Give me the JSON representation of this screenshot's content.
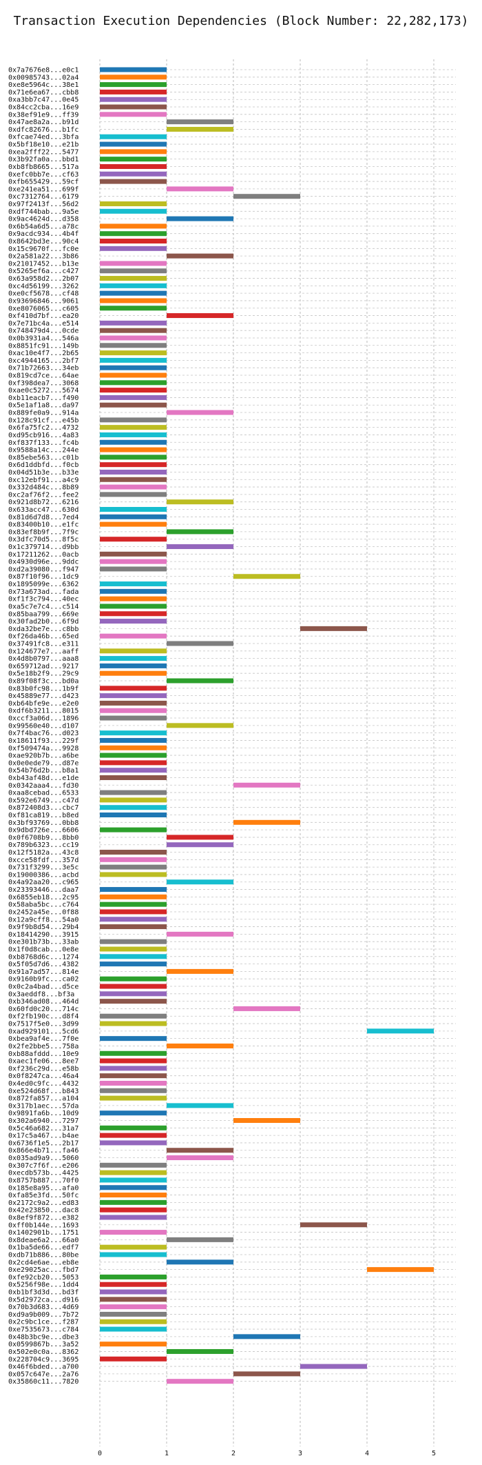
{
  "chart_data": {
    "type": "bar",
    "orientation": "horizontal-gantt",
    "title": "Transaction Execution Dependencies (Block Number: 22,282,173)",
    "xlabel": "",
    "ylabel": "",
    "xlim": [
      0,
      5
    ],
    "xticks": [
      0,
      1,
      2,
      3,
      4,
      5
    ],
    "grid": true,
    "colors": [
      "#1f77b4",
      "#ff7f0e",
      "#2ca02c",
      "#d62728",
      "#9467bd",
      "#8c564b",
      "#e377c2",
      "#7f7f7f",
      "#bcbd22",
      "#17becf"
    ],
    "transactions": [
      {
        "label": "0x7a7676e8...e0c1",
        "start": 0,
        "end": 1
      },
      {
        "label": "0x00985743...02a4",
        "start": 0,
        "end": 1
      },
      {
        "label": "0xe8e5964c...38e1",
        "start": 0,
        "end": 1
      },
      {
        "label": "0x71e6ea67...cbb8",
        "start": 0,
        "end": 1
      },
      {
        "label": "0xa3bb7c47...0e45",
        "start": 0,
        "end": 1
      },
      {
        "label": "0x84cc2cba...16e9",
        "start": 0,
        "end": 1
      },
      {
        "label": "0x38ef91e9...ff39",
        "start": 0,
        "end": 1
      },
      {
        "label": "0x47ae8a2a...b91d",
        "start": 1,
        "end": 2
      },
      {
        "label": "0xdfc82676...b1fc",
        "start": 1,
        "end": 2
      },
      {
        "label": "0xfcae74ed...3bfa",
        "start": 0,
        "end": 1
      },
      {
        "label": "0x5bf18e10...e21b",
        "start": 0,
        "end": 1
      },
      {
        "label": "0xea2fff22...5477",
        "start": 0,
        "end": 1
      },
      {
        "label": "0x3b92fa0a...bbd1",
        "start": 0,
        "end": 1
      },
      {
        "label": "0xb8fb8665...517a",
        "start": 0,
        "end": 1
      },
      {
        "label": "0xefc0bb7e...cf63",
        "start": 0,
        "end": 1
      },
      {
        "label": "0xfb655429...59cf",
        "start": 0,
        "end": 1
      },
      {
        "label": "0xe241ea51...699f",
        "start": 1,
        "end": 2
      },
      {
        "label": "0xc7312764...6179",
        "start": 2,
        "end": 3
      },
      {
        "label": "0x97f2413f...56d2",
        "start": 0,
        "end": 1
      },
      {
        "label": "0xdf744bab...9a5e",
        "start": 0,
        "end": 1
      },
      {
        "label": "0x9ac4624d...d358",
        "start": 1,
        "end": 2
      },
      {
        "label": "0x6b54a6d5...a78c",
        "start": 0,
        "end": 1
      },
      {
        "label": "0x9acdc934...4b4f",
        "start": 0,
        "end": 1
      },
      {
        "label": "0x8642bd3e...90c4",
        "start": 0,
        "end": 1
      },
      {
        "label": "0x15c9670f...fc0e",
        "start": 0,
        "end": 1
      },
      {
        "label": "0x2a581a22...3b86",
        "start": 1,
        "end": 2
      },
      {
        "label": "0x21017452...b13e",
        "start": 0,
        "end": 1
      },
      {
        "label": "0x5265ef6a...c427",
        "start": 0,
        "end": 1
      },
      {
        "label": "0x63a958d2...2b07",
        "start": 0,
        "end": 1
      },
      {
        "label": "0xc4d56199...3262",
        "start": 0,
        "end": 1
      },
      {
        "label": "0xe0cf5678...cf48",
        "start": 0,
        "end": 1
      },
      {
        "label": "0x93696846...9061",
        "start": 0,
        "end": 1
      },
      {
        "label": "0xe8076065...c605",
        "start": 0,
        "end": 1
      },
      {
        "label": "0xf410d7bf...ea20",
        "start": 1,
        "end": 2
      },
      {
        "label": "0x7e71bc4a...e514",
        "start": 0,
        "end": 1
      },
      {
        "label": "0x748479d4...0cde",
        "start": 0,
        "end": 1
      },
      {
        "label": "0x0b3931a4...546a",
        "start": 0,
        "end": 1
      },
      {
        "label": "0x8851fc91...149b",
        "start": 0,
        "end": 1
      },
      {
        "label": "0xac10e4f7...2b65",
        "start": 0,
        "end": 1
      },
      {
        "label": "0xc4944165...2bf7",
        "start": 0,
        "end": 1
      },
      {
        "label": "0x71b72663...34eb",
        "start": 0,
        "end": 1
      },
      {
        "label": "0x819cd7ce...64ae",
        "start": 0,
        "end": 1
      },
      {
        "label": "0xf398dea7...3068",
        "start": 0,
        "end": 1
      },
      {
        "label": "0xae0c5272...5674",
        "start": 0,
        "end": 1
      },
      {
        "label": "0xb11eacb7...f490",
        "start": 0,
        "end": 1
      },
      {
        "label": "0x5e1af1a8...da97",
        "start": 0,
        "end": 1
      },
      {
        "label": "0x889fe0a9...914a",
        "start": 1,
        "end": 2
      },
      {
        "label": "0x128c91cf...e45b",
        "start": 0,
        "end": 1
      },
      {
        "label": "0x6fa75fc2...4732",
        "start": 0,
        "end": 1
      },
      {
        "label": "0xd95cb916...4a83",
        "start": 0,
        "end": 1
      },
      {
        "label": "0xf837f133...fc4b",
        "start": 0,
        "end": 1
      },
      {
        "label": "0x9588a14c...244e",
        "start": 0,
        "end": 1
      },
      {
        "label": "0x85ebe563...c01b",
        "start": 0,
        "end": 1
      },
      {
        "label": "0x6d1ddbfd...f0cb",
        "start": 0,
        "end": 1
      },
      {
        "label": "0x04d51b3e...b33e",
        "start": 0,
        "end": 1
      },
      {
        "label": "0xc12ebf91...a4c9",
        "start": 0,
        "end": 1
      },
      {
        "label": "0x332d484c...8b89",
        "start": 0,
        "end": 1
      },
      {
        "label": "0xc2af76f2...fee2",
        "start": 0,
        "end": 1
      },
      {
        "label": "0x921d8b72...6216",
        "start": 1,
        "end": 2
      },
      {
        "label": "0x633acc47...630d",
        "start": 0,
        "end": 1
      },
      {
        "label": "0x81d6d7d8...7ed4",
        "start": 0,
        "end": 1
      },
      {
        "label": "0x83400b10...e1fc",
        "start": 0,
        "end": 1
      },
      {
        "label": "0x83ef8b9f...7f9c",
        "start": 1,
        "end": 2
      },
      {
        "label": "0x3dfc70d5...8f5c",
        "start": 0,
        "end": 1
      },
      {
        "label": "0x1c379714...d9bb",
        "start": 1,
        "end": 2
      },
      {
        "label": "0x17211262...0acb",
        "start": 0,
        "end": 1
      },
      {
        "label": "0x4930d96e...9ddc",
        "start": 0,
        "end": 1
      },
      {
        "label": "0xd2a39080...f947",
        "start": 0,
        "end": 1
      },
      {
        "label": "0x87f10f96...1dc9",
        "start": 2,
        "end": 3
      },
      {
        "label": "0x1895099e...6362",
        "start": 0,
        "end": 1
      },
      {
        "label": "0x73a673ad...fada",
        "start": 0,
        "end": 1
      },
      {
        "label": "0xf1f3c794...40ec",
        "start": 0,
        "end": 1
      },
      {
        "label": "0xa5c7e7c4...c514",
        "start": 0,
        "end": 1
      },
      {
        "label": "0x85baa799...669e",
        "start": 0,
        "end": 1
      },
      {
        "label": "0x30fad2b0...6f9d",
        "start": 0,
        "end": 1
      },
      {
        "label": "0xda32be7e...c8bb",
        "start": 3,
        "end": 4
      },
      {
        "label": "0xf26da46b...65ed",
        "start": 0,
        "end": 1
      },
      {
        "label": "0x37491fc8...e311",
        "start": 1,
        "end": 2
      },
      {
        "label": "0x124677e7...aaff",
        "start": 0,
        "end": 1
      },
      {
        "label": "0x4d8b0797...aaa8",
        "start": 0,
        "end": 1
      },
      {
        "label": "0x659712ad...9217",
        "start": 0,
        "end": 1
      },
      {
        "label": "0x5e18b2f9...29c9",
        "start": 0,
        "end": 1
      },
      {
        "label": "0x89f08f3c...bd0a",
        "start": 1,
        "end": 2
      },
      {
        "label": "0x83b0fc98...1b9f",
        "start": 0,
        "end": 1
      },
      {
        "label": "0x45889e77...d423",
        "start": 0,
        "end": 1
      },
      {
        "label": "0xb64bfe9e...e2e0",
        "start": 0,
        "end": 1
      },
      {
        "label": "0xdf6b3211...8015",
        "start": 0,
        "end": 1
      },
      {
        "label": "0xccf3a06d...1896",
        "start": 0,
        "end": 1
      },
      {
        "label": "0x99560e40...d107",
        "start": 1,
        "end": 2
      },
      {
        "label": "0x7f4bac76...d023",
        "start": 0,
        "end": 1
      },
      {
        "label": "0x18611f93...229f",
        "start": 0,
        "end": 1
      },
      {
        "label": "0xf509474a...9928",
        "start": 0,
        "end": 1
      },
      {
        "label": "0xae920b7b...a6be",
        "start": 0,
        "end": 1
      },
      {
        "label": "0x0e0ede79...d87e",
        "start": 0,
        "end": 1
      },
      {
        "label": "0x54b76d2b...b8a1",
        "start": 0,
        "end": 1
      },
      {
        "label": "0xb43af48d...e1de",
        "start": 0,
        "end": 1
      },
      {
        "label": "0x0342aaa4...fd30",
        "start": 2,
        "end": 3
      },
      {
        "label": "0xaa8cebad...6533",
        "start": 0,
        "end": 1
      },
      {
        "label": "0x592e6749...c47d",
        "start": 0,
        "end": 1
      },
      {
        "label": "0x872408d3...cbc7",
        "start": 0,
        "end": 1
      },
      {
        "label": "0xf81ca819...b8ed",
        "start": 0,
        "end": 1
      },
      {
        "label": "0x3bf93769...0bb8",
        "start": 2,
        "end": 3
      },
      {
        "label": "0x9dbd726e...6606",
        "start": 0,
        "end": 1
      },
      {
        "label": "0x0f6708b9...8bb0",
        "start": 1,
        "end": 2
      },
      {
        "label": "0x789b6323...cc19",
        "start": 1,
        "end": 2
      },
      {
        "label": "0x12f5182a...43c8",
        "start": 0,
        "end": 1
      },
      {
        "label": "0xcce58fdf...357d",
        "start": 0,
        "end": 1
      },
      {
        "label": "0x731f3299...3e5c",
        "start": 0,
        "end": 1
      },
      {
        "label": "0x19000386...acbd",
        "start": 0,
        "end": 1
      },
      {
        "label": "0x4a92aa20...c965",
        "start": 1,
        "end": 2
      },
      {
        "label": "0x23393446...daa7",
        "start": 0,
        "end": 1
      },
      {
        "label": "0x6855eb18...2c95",
        "start": 0,
        "end": 1
      },
      {
        "label": "0x58aba5bc...c764",
        "start": 0,
        "end": 1
      },
      {
        "label": "0x2452a45e...0f88",
        "start": 0,
        "end": 1
      },
      {
        "label": "0x12a9cff8...54a0",
        "start": 0,
        "end": 1
      },
      {
        "label": "0x9f9b8d54...29b4",
        "start": 0,
        "end": 1
      },
      {
        "label": "0x18414290...3915",
        "start": 1,
        "end": 2
      },
      {
        "label": "0xe301b73b...33ab",
        "start": 0,
        "end": 1
      },
      {
        "label": "0x1f0d8cab...0e8e",
        "start": 0,
        "end": 1
      },
      {
        "label": "0xb8768d6c...1274",
        "start": 0,
        "end": 1
      },
      {
        "label": "0x5f05d7d6...4382",
        "start": 0,
        "end": 1
      },
      {
        "label": "0x91a7ad57...814e",
        "start": 1,
        "end": 2
      },
      {
        "label": "0x9160b9fc...ca02",
        "start": 0,
        "end": 1
      },
      {
        "label": "0x0c2a4bad...d5ce",
        "start": 0,
        "end": 1
      },
      {
        "label": "0x3aeddf8...bf3a",
        "start": 0,
        "end": 1
      },
      {
        "label": "0xb346ad08...464d",
        "start": 0,
        "end": 1
      },
      {
        "label": "0x60fd0c20...714c",
        "start": 2,
        "end": 3
      },
      {
        "label": "0xf2fb190c...d8f4",
        "start": 0,
        "end": 1
      },
      {
        "label": "0x7517f5e0...3d99",
        "start": 0,
        "end": 1
      },
      {
        "label": "0xad929101...5cd6",
        "start": 4,
        "end": 5
      },
      {
        "label": "0xbea9af4e...7f0e",
        "start": 0,
        "end": 1
      },
      {
        "label": "0x2fe2bbe5...758a",
        "start": 1,
        "end": 2
      },
      {
        "label": "0xb88afddd...10e9",
        "start": 0,
        "end": 1
      },
      {
        "label": "0xaec1fe06...8ee7",
        "start": 0,
        "end": 1
      },
      {
        "label": "0xf236c29d...e58b",
        "start": 0,
        "end": 1
      },
      {
        "label": "0x0f8247ca...46a4",
        "start": 0,
        "end": 1
      },
      {
        "label": "0x4ed0c9fc...4432",
        "start": 0,
        "end": 1
      },
      {
        "label": "0xe524d68f...b843",
        "start": 0,
        "end": 1
      },
      {
        "label": "0x872fa857...a104",
        "start": 0,
        "end": 1
      },
      {
        "label": "0x317b1aec...57da",
        "start": 1,
        "end": 2
      },
      {
        "label": "0x9891fa6b...10d9",
        "start": 0,
        "end": 1
      },
      {
        "label": "0x302a6940...7297",
        "start": 2,
        "end": 3
      },
      {
        "label": "0x5c46a682...31a7",
        "start": 0,
        "end": 1
      },
      {
        "label": "0x17c5a467...b4ae",
        "start": 0,
        "end": 1
      },
      {
        "label": "0x6736f1e5...2b17",
        "start": 0,
        "end": 1
      },
      {
        "label": "0x866e4b71...fa46",
        "start": 1,
        "end": 2
      },
      {
        "label": "0x035ad9a9...5060",
        "start": 1,
        "end": 2
      },
      {
        "label": "0x307c7f6f...e206",
        "start": 0,
        "end": 1
      },
      {
        "label": "0xecdb573b...4425",
        "start": 0,
        "end": 1
      },
      {
        "label": "0x8757b887...70f0",
        "start": 0,
        "end": 1
      },
      {
        "label": "0x185e8a95...afa0",
        "start": 0,
        "end": 1
      },
      {
        "label": "0xfa85e3fd...50fc",
        "start": 0,
        "end": 1
      },
      {
        "label": "0x2172c9a2...ed83",
        "start": 0,
        "end": 1
      },
      {
        "label": "0x42e23850...dac8",
        "start": 0,
        "end": 1
      },
      {
        "label": "0x8ef9f872...e382",
        "start": 0,
        "end": 1
      },
      {
        "label": "0xff0b144e...1693",
        "start": 3,
        "end": 4
      },
      {
        "label": "0x1402901b...1751",
        "start": 0,
        "end": 1
      },
      {
        "label": "0x8deae6a2...66a0",
        "start": 1,
        "end": 2
      },
      {
        "label": "0x1ba5de66...edf7",
        "start": 0,
        "end": 1
      },
      {
        "label": "0xdb71b886...80be",
        "start": 0,
        "end": 1
      },
      {
        "label": "0x2cd4e6ae...eb8e",
        "start": 1,
        "end": 2
      },
      {
        "label": "0xe29025ac...fbd7",
        "start": 4,
        "end": 5
      },
      {
        "label": "0xfe92cb20...5053",
        "start": 0,
        "end": 1
      },
      {
        "label": "0x5256f98e...1dd4",
        "start": 0,
        "end": 1
      },
      {
        "label": "0xb1bf3d3d...bd3f",
        "start": 0,
        "end": 1
      },
      {
        "label": "0x5d2972ca...d916",
        "start": 0,
        "end": 1
      },
      {
        "label": "0x70b3d683...4d69",
        "start": 0,
        "end": 1
      },
      {
        "label": "0xd9a9b009...7b72",
        "start": 0,
        "end": 1
      },
      {
        "label": "0x2c9bc1ce...f287",
        "start": 0,
        "end": 1
      },
      {
        "label": "0xe7535673...c784",
        "start": 0,
        "end": 1
      },
      {
        "label": "0x48b3bc9e...dbe3",
        "start": 2,
        "end": 3
      },
      {
        "label": "0x0599867b...3a52",
        "start": 0,
        "end": 1
      },
      {
        "label": "0x502e0c0a...8362",
        "start": 1,
        "end": 2
      },
      {
        "label": "0x228704c9...3695",
        "start": 0,
        "end": 1
      },
      {
        "label": "0x46f6bded...a700",
        "start": 3,
        "end": 4
      },
      {
        "label": "0x057c647e...2a76",
        "start": 2,
        "end": 3
      },
      {
        "label": "0x35860c11...7820",
        "start": 1,
        "end": 2
      }
    ]
  }
}
